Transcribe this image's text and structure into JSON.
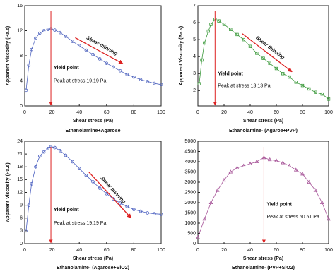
{
  "chart_data": [
    {
      "type": "line",
      "title": "Ethanolamine+Agarose",
      "x_label": "Shear stress (Pa)",
      "y_label": "Apparent Viscosity (Pa.s)",
      "annotations": {
        "yield": "Yield point",
        "peak": "Peak at stress 19.19 Pa",
        "trend": "Shear thinning"
      },
      "yield_x": 19.19,
      "xlim": [
        0,
        100
      ],
      "xticks": [
        0,
        20,
        40,
        60,
        80,
        100
      ],
      "ylim": [
        0,
        16
      ],
      "yticks": [
        0,
        4,
        8,
        12,
        16
      ],
      "series": [
        {
          "name": null,
          "color": "#5468c0",
          "marker": "circle",
          "x": [
            1,
            3,
            5,
            8,
            11,
            14,
            17,
            19.19,
            22,
            26,
            30,
            35,
            40,
            45,
            50,
            55,
            60,
            65,
            70,
            75,
            80,
            85,
            90,
            95,
            100
          ],
          "values": [
            2.5,
            6.5,
            9.0,
            10.8,
            11.6,
            12.0,
            12.2,
            12.3,
            12.1,
            11.7,
            11.1,
            10.3,
            9.6,
            8.9,
            8.2,
            7.5,
            6.8,
            6.2,
            5.6,
            5.0,
            4.6,
            4.2,
            3.9,
            3.6,
            3.4
          ]
        }
      ]
    },
    {
      "type": "line",
      "title": "Ethanolamine- (Agaroe+PVP)",
      "x_label": "Shear stress (Pa)",
      "y_label": "Apparent Viscosity (Pa.s)",
      "annotations": {
        "yield": "Yield point",
        "peak": "Peak at stress 13.13 Pa",
        "trend": "Shear thinning"
      },
      "yield_x": 13.13,
      "xlim": [
        0,
        100
      ],
      "xticks": [
        0,
        20,
        40,
        60,
        80,
        100
      ],
      "ylim": [
        1.1,
        7
      ],
      "yticks": [
        2,
        3,
        4,
        5,
        6,
        7
      ],
      "series": [
        {
          "name": null,
          "color": "#3c9a3c",
          "marker": "square",
          "x": [
            1,
            3,
            5,
            8,
            10,
            13.13,
            16,
            20,
            25,
            30,
            35,
            40,
            45,
            50,
            55,
            60,
            65,
            70,
            75,
            80,
            85,
            90,
            95,
            100
          ],
          "values": [
            2.4,
            3.8,
            4.8,
            5.5,
            5.9,
            6.2,
            6.1,
            5.9,
            5.6,
            5.3,
            5.0,
            4.6,
            4.2,
            3.9,
            3.6,
            3.3,
            3.0,
            2.8,
            2.5,
            2.3,
            2.1,
            1.9,
            1.8,
            1.5
          ]
        }
      ]
    },
    {
      "type": "line",
      "title": "Ethanolamine- (Agarose+SiO2)",
      "x_label": "Shear stress (Pa)",
      "y_label": "Apparent Viscosity (Pa.s)",
      "annotations": {
        "yield": "Yield point",
        "peak": "Peak at stress 19.19 Pa",
        "trend": "Shear thinning"
      },
      "yield_x": 19.19,
      "xlim": [
        0,
        100
      ],
      "xticks": [
        0,
        20,
        40,
        60,
        80,
        100
      ],
      "ylim": [
        0,
        24
      ],
      "yticks": [
        0,
        3,
        6,
        9,
        12,
        15,
        18,
        21,
        24
      ],
      "series": [
        {
          "name": null,
          "color": "#4a5fc0",
          "marker": "circle",
          "x": [
            1,
            3,
            5,
            8,
            11,
            14,
            17,
            19.19,
            22,
            26,
            30,
            35,
            40,
            45,
            50,
            55,
            60,
            65,
            70,
            75,
            80,
            85,
            90,
            95,
            100
          ],
          "values": [
            3,
            9,
            14,
            18,
            20.5,
            21.5,
            22.3,
            22.7,
            22.5,
            21.8,
            20.7,
            19.2,
            17.6,
            16,
            14.5,
            13,
            11.7,
            10.5,
            9.5,
            8.7,
            8,
            7.6,
            7.2,
            7,
            6.9
          ]
        }
      ]
    },
    {
      "type": "line",
      "title": "Ethanolamine- (PVP+SiO2)",
      "x_label": "Shear stress (Pa)",
      "annotations": {
        "yield": "Yield point",
        "peak": "Peak at stress 50.51 Pa"
      },
      "yield_x": 50.51,
      "xlim": [
        0,
        100
      ],
      "xticks": [
        0,
        20,
        40,
        60,
        80,
        100
      ],
      "ylim": [
        0,
        5000
      ],
      "yticks": [
        0,
        500,
        1000,
        1500,
        2000,
        2500,
        3000,
        3500,
        4000,
        4500,
        5000
      ],
      "series": [
        {
          "name": null,
          "color": "#a8579a",
          "marker": "triangle",
          "x": [
            0,
            5,
            10,
            15,
            20,
            25,
            30,
            35,
            40,
            45,
            50.51,
            55,
            60,
            65,
            70,
            75,
            80,
            85,
            90,
            95,
            100
          ],
          "values": [
            300,
            1200,
            2000,
            2600,
            3100,
            3500,
            3700,
            3800,
            3900,
            4000,
            4200,
            4100,
            4050,
            3950,
            3800,
            3600,
            3400,
            3000,
            2600,
            2000,
            1200
          ]
        }
      ]
    }
  ]
}
